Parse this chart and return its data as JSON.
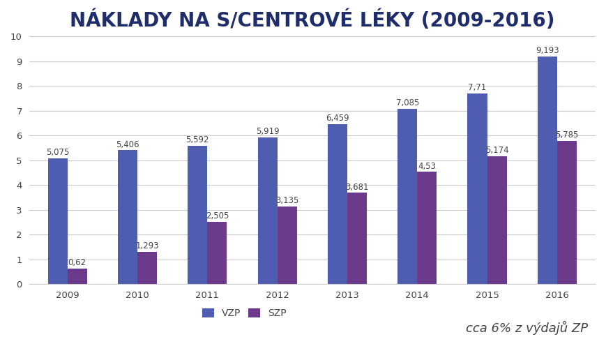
{
  "title": "NÁKLADY NA S/CENTROVÉ LÉKY (2009-2016)",
  "years": [
    "2009",
    "2010",
    "2011",
    "2012",
    "2013",
    "2014",
    "2015",
    "2016"
  ],
  "vzp_values": [
    5.075,
    5.406,
    5.592,
    5.919,
    6.459,
    7.085,
    7.71,
    9.193
  ],
  "szp_values": [
    0.62,
    1.293,
    2.505,
    3.135,
    3.681,
    4.53,
    5.174,
    5.785
  ],
  "vzp_labels": [
    "5,075",
    "5,406",
    "5,592",
    "5,919",
    "6,459",
    "7,085",
    "7,71",
    "9,193"
  ],
  "szp_labels": [
    "0,62",
    "1,293",
    "2,505",
    "3,135",
    "3,681",
    "4,53",
    "5,174",
    "5,785"
  ],
  "vzp_color": "#4F5DB0",
  "szp_color": "#6B3A8A",
  "legend_vzp": "VZP",
  "legend_szp": "SZP",
  "annotation": "cca 6% z výdajů ZP",
  "ylim": [
    0,
    10
  ],
  "yticks": [
    0,
    1,
    2,
    3,
    4,
    5,
    6,
    7,
    8,
    9,
    10
  ],
  "title_color": "#1F2D6B",
  "axis_color": "#444444",
  "bar_width": 0.28,
  "title_fontsize": 20,
  "label_fontsize": 8.5,
  "tick_fontsize": 9.5,
  "annotation_fontsize": 13,
  "legend_fontsize": 10,
  "background_color": "#FFFFFF",
  "grid_color": "#CCCCCC"
}
